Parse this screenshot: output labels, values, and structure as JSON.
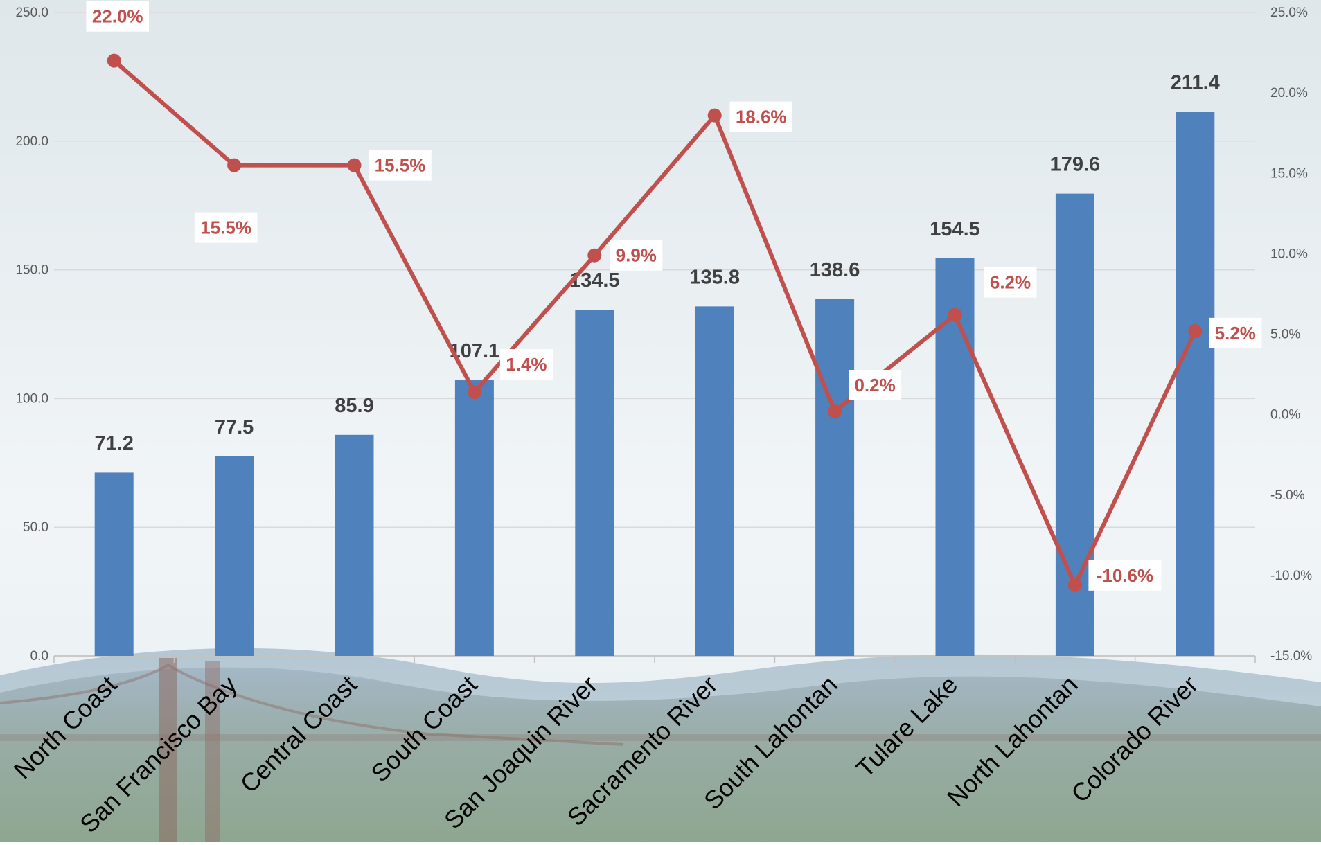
{
  "chart_data": {
    "type": "bar",
    "categories": [
      "North Coast",
      "San Francisco Bay",
      "Central Coast",
      "South Coast",
      "San Joaquin River",
      "Sacramento River",
      "South Lahontan",
      "Tulare Lake",
      "North Lahontan",
      "Colorado River"
    ],
    "series": [
      {
        "type": "bar",
        "axis": "left",
        "values": [
          71.2,
          77.5,
          85.9,
          107.1,
          134.5,
          135.8,
          138.6,
          154.5,
          179.6,
          211.4
        ],
        "labels": [
          "71.2",
          "77.5",
          "85.9",
          "107.1",
          "134.5",
          "135.8",
          "138.6",
          "154.5",
          "179.6",
          "211.4"
        ]
      },
      {
        "type": "line",
        "axis": "right",
        "values": [
          22.0,
          15.5,
          15.5,
          1.4,
          9.9,
          18.6,
          0.2,
          6.2,
          -10.6,
          5.2
        ],
        "labels": [
          "22.0%",
          "15.5%",
          "15.5%",
          "1.4%",
          "9.9%",
          "18.6%",
          "0.2%",
          "6.2%",
          "-10.6%",
          "5.2%"
        ]
      }
    ],
    "left_axis": {
      "ylim": [
        0,
        250
      ],
      "ticks": [
        "0.0",
        "50.0",
        "100.0",
        "150.0",
        "200.0",
        "250.0"
      ]
    },
    "right_axis": {
      "ylim": [
        -15,
        25
      ],
      "ticks": [
        "-15.0%",
        "-10.0%",
        "-5.0%",
        "0.0%",
        "5.0%",
        "10.0%",
        "15.0%",
        "20.0%",
        "25.0%"
      ]
    },
    "grid": true,
    "legend": "none",
    "colors": {
      "bar": "#4f81bd",
      "line": "#c0504d",
      "value_label": "#404040",
      "tick": "#595959",
      "grid": "#d9d9d9"
    }
  }
}
